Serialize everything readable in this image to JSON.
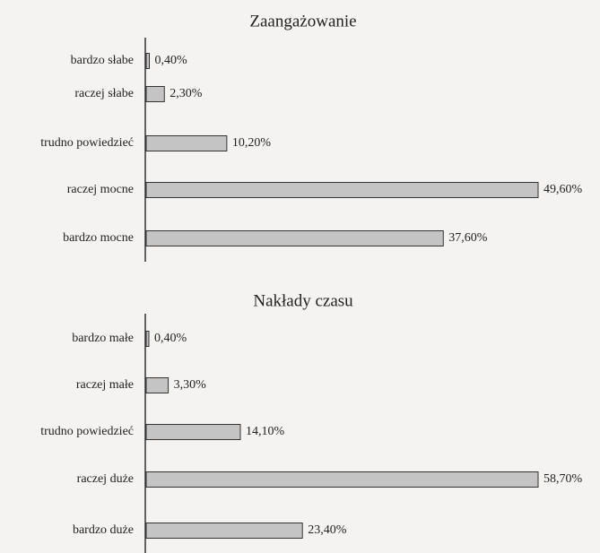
{
  "chart_data": [
    {
      "type": "bar",
      "orientation": "horizontal",
      "title": "Zaangażowanie",
      "categories": [
        "bardzo słabe",
        "raczej słabe",
        "trudno powiedzieć",
        "raczej mocne",
        "bardzo mocne"
      ],
      "values": [
        0.4,
        2.3,
        10.2,
        49.6,
        37.6
      ],
      "value_labels": [
        "0,40%",
        "2,30%",
        "10,20%",
        "49,60%",
        "37,60%"
      ],
      "color": "#c4c4c4"
    },
    {
      "type": "bar",
      "orientation": "horizontal",
      "title": "Nakłady czasu",
      "categories": [
        "bardzo małe",
        "raczej małe",
        "trudno powiedzieć",
        "raczej duże",
        "bardzo duże"
      ],
      "values": [
        0.4,
        3.3,
        14.1,
        58.7,
        23.4
      ],
      "value_labels": [
        "0,40%",
        "3,30%",
        "14,10%",
        "58,70%",
        "23,40%"
      ],
      "color": "#c4c4c4"
    }
  ]
}
